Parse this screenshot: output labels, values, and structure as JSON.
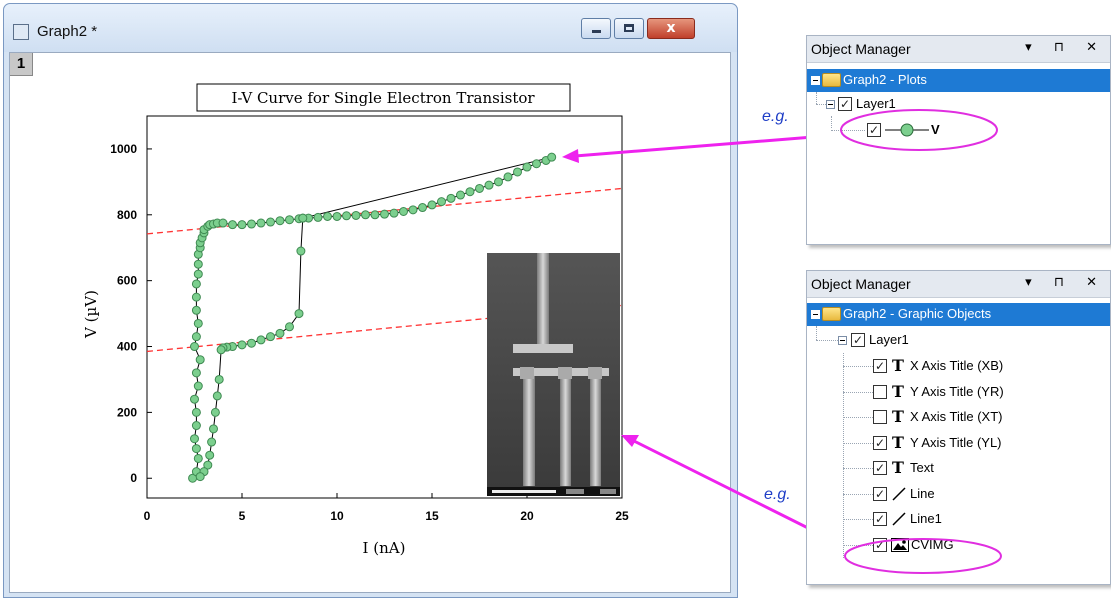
{
  "window": {
    "title": "Graph2 *",
    "layer_number": "1",
    "close_symbol": "x"
  },
  "chart_data": {
    "type": "scatter",
    "title": "I-V Curve for Single Electron Transistor",
    "xlabel": "I (nA)",
    "ylabel": "V (µV)",
    "xlim": [
      0,
      25
    ],
    "ylim": [
      -60,
      1100
    ],
    "xticks": [
      "0",
      "5",
      "10",
      "15",
      "20",
      "25"
    ],
    "yticks": [
      "0",
      "200",
      "400",
      "600",
      "800",
      "1000"
    ],
    "series": [
      {
        "name": "V",
        "color": "#7ccf8e",
        "line_color": "#000000",
        "x": [
          2.4,
          2.6,
          2.7,
          2.6,
          2.5,
          2.6,
          2.6,
          2.5,
          2.7,
          2.6,
          2.8,
          2.5,
          2.6,
          2.7,
          2.6,
          2.6,
          2.6,
          2.7,
          2.7,
          2.7,
          2.8,
          2.8,
          2.9,
          3.0,
          3.0,
          3.2,
          3.3,
          3.5,
          3.7,
          4.0,
          4.5,
          5.0,
          5.5,
          6.0,
          6.5,
          7.0,
          7.5,
          8.0,
          8.2,
          8.5,
          9,
          9.5,
          10,
          10.5,
          11,
          11.5,
          12,
          12.5,
          13,
          13.5,
          14,
          14.5,
          15,
          15.5,
          16,
          16.5,
          17,
          17.5,
          18,
          18.5,
          19,
          19.5,
          20,
          20.5,
          21,
          21.3,
          8.2,
          8.1,
          8.0,
          7.5,
          7.0,
          6.5,
          6.0,
          5.5,
          5.0,
          4.5,
          4.2,
          4.0,
          3.9,
          3.8,
          3.7,
          3.6,
          3.5,
          3.4,
          3.3,
          3.2,
          3.0,
          2.8
        ],
        "y": [
          0,
          20,
          60,
          90,
          120,
          160,
          200,
          240,
          280,
          320,
          360,
          400,
          430,
          470,
          510,
          550,
          590,
          620,
          650,
          680,
          700,
          715,
          730,
          745,
          755,
          765,
          770,
          772,
          775,
          775,
          770,
          770,
          772,
          775,
          778,
          782,
          785,
          788,
          790,
          790,
          792,
          795,
          795,
          797,
          798,
          800,
          800,
          802,
          805,
          810,
          815,
          822,
          830,
          840,
          850,
          860,
          870,
          880,
          890,
          900,
          915,
          930,
          945,
          955,
          965,
          975,
          790,
          690,
          500,
          460,
          440,
          430,
          420,
          410,
          405,
          400,
          398,
          396,
          390,
          300,
          250,
          200,
          150,
          110,
          70,
          40,
          20,
          5
        ]
      }
    ],
    "fit_lines": [
      {
        "color": "#ff3333",
        "x": [
          0,
          25
        ],
        "y": [
          742,
          880
        ]
      },
      {
        "color": "#ff3333",
        "x": [
          0,
          25
        ],
        "y": [
          385,
          525
        ]
      }
    ],
    "inset_image": "sem-micrograph"
  },
  "om_plots": {
    "title": "Object Manager",
    "controls": "▾ ⊓ ✕",
    "root": "Graph2 - Plots",
    "layer": "Layer1",
    "plot": "V"
  },
  "om_graphics": {
    "title": "Object Manager",
    "controls": "▾ ⊓ ✕",
    "root": "Graph2 - Graphic Objects",
    "layer": "Layer1",
    "items": [
      {
        "label": "X Axis Title (XB)",
        "checked": true,
        "icon": "text-icon"
      },
      {
        "label": "Y Axis Title (YR)",
        "checked": false,
        "icon": "text-icon"
      },
      {
        "label": "X Axis Title (XT)",
        "checked": false,
        "icon": "text-icon"
      },
      {
        "label": "Y Axis Title (YL)",
        "checked": true,
        "icon": "text-icon"
      },
      {
        "label": "Text",
        "checked": true,
        "icon": "text-icon"
      },
      {
        "label": "Line",
        "checked": true,
        "icon": "line-icon"
      },
      {
        "label": "Line1",
        "checked": true,
        "icon": "line-icon"
      },
      {
        "label": "CVIMG",
        "checked": true,
        "icon": "image-icon"
      }
    ]
  },
  "annotations": {
    "eg1": "e.g.",
    "eg2": "e.g.",
    "arrow_color": "#ee22ee",
    "highlight_color": "#e02ee0"
  },
  "glyphs": {
    "text_icon": "T",
    "check": "✓"
  }
}
